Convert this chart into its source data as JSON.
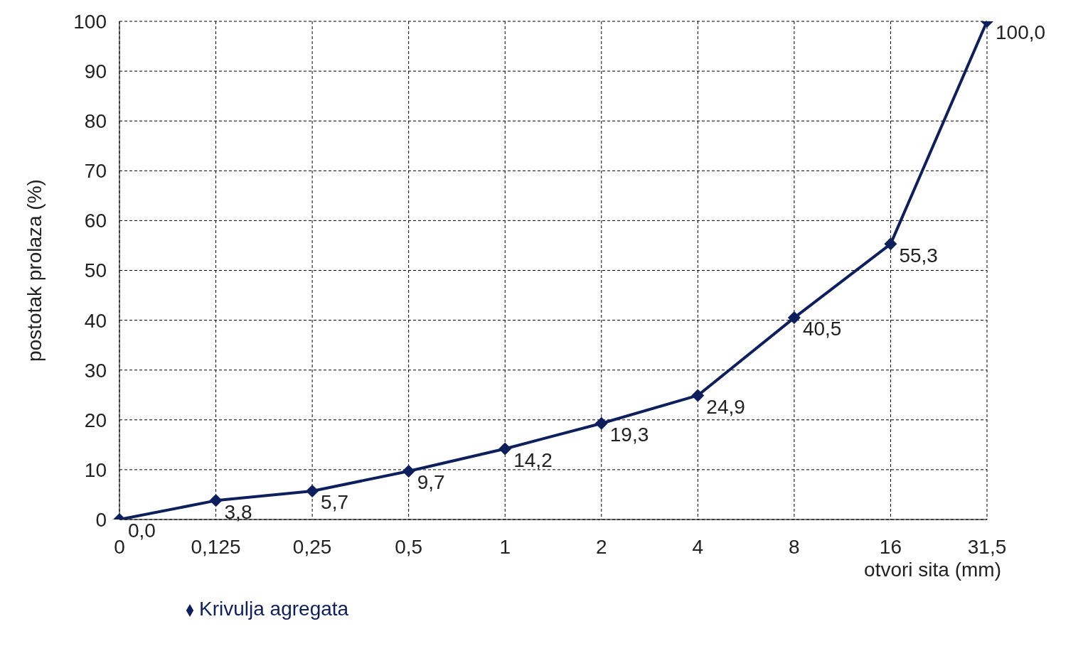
{
  "chart_data": {
    "type": "line",
    "xlabel": "otvori sita (mm)",
    "ylabel": "postotak prolaza (%)",
    "categories": [
      "0",
      "0,125",
      "0,25",
      "0,5",
      "1",
      "2",
      "4",
      "8",
      "16",
      "31,5"
    ],
    "series": [
      {
        "name": "Krivulja agregata",
        "color": "#0d1f5c",
        "values": [
          0,
          3.8,
          5.7,
          9.7,
          14.2,
          19.3,
          24.9,
          40.5,
          55.3,
          100
        ],
        "value_labels": [
          "0,0",
          "3,8",
          "5,7",
          "9,7",
          "14,2",
          "19,3",
          "24,9",
          "40,5",
          "55,3",
          "100,0"
        ]
      }
    ],
    "ylim": [
      0,
      100
    ],
    "yticks": [
      0,
      10,
      20,
      30,
      40,
      50,
      60,
      70,
      80,
      90,
      100
    ],
    "grid": true,
    "legend": "bottom left",
    "marker": "diamond",
    "line_style": "solid"
  }
}
